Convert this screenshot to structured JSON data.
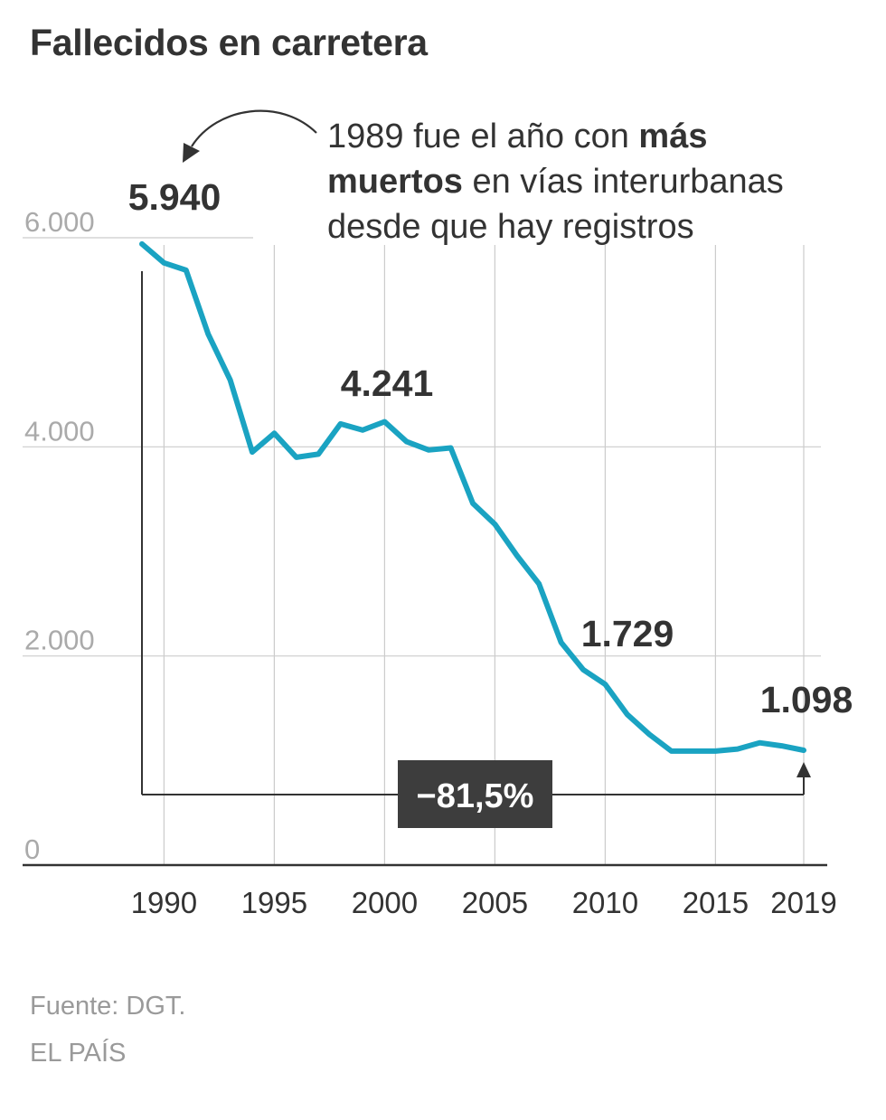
{
  "chart_data": {
    "type": "line",
    "title": "Fallecidos en carretera",
    "xlabel": "",
    "ylabel": "",
    "ylim": [
      0,
      6000
    ],
    "xlim": [
      1989,
      2019
    ],
    "grid": "horizontal",
    "y_ticks": [
      {
        "value": 0,
        "label": "0"
      },
      {
        "value": 2000,
        "label": "2.000"
      },
      {
        "value": 4000,
        "label": "4.000"
      },
      {
        "value": 6000,
        "label": "6.000"
      }
    ],
    "x_ticks": [
      {
        "value": 1990,
        "label": "1990"
      },
      {
        "value": 1995,
        "label": "1995"
      },
      {
        "value": 2000,
        "label": "2000"
      },
      {
        "value": 2005,
        "label": "2005"
      },
      {
        "value": 2010,
        "label": "2010"
      },
      {
        "value": 2015,
        "label": "2015"
      },
      {
        "value": 2019,
        "label": "2019"
      }
    ],
    "series": [
      {
        "color": "#1aa3c2",
        "x": [
          1989,
          1990,
          1991,
          1992,
          1993,
          1994,
          1995,
          1996,
          1997,
          1998,
          1999,
          2000,
          2001,
          2002,
          2003,
          2004,
          2005,
          2006,
          2007,
          2008,
          2009,
          2010,
          2011,
          2012,
          2013,
          2014,
          2015,
          2016,
          2017,
          2018,
          2019
        ],
        "y": [
          5940,
          5760,
          5690,
          5080,
          4640,
          3950,
          4130,
          3900,
          3930,
          4220,
          4160,
          4241,
          4050,
          3970,
          3990,
          3460,
          3260,
          2960,
          2690,
          2130,
          1870,
          1729,
          1440,
          1250,
          1090,
          1090,
          1090,
          1110,
          1170,
          1140,
          1098
        ]
      }
    ],
    "annotations": [
      {
        "x": 1989,
        "y": 5940,
        "label": "5.940"
      },
      {
        "x": 2000,
        "y": 4241,
        "label": "4.241"
      },
      {
        "x": 2010,
        "y": 1729,
        "label": "1.729"
      },
      {
        "x": 2019,
        "y": 1098,
        "label": "1.098"
      }
    ],
    "callout": {
      "line1": "1989 fue el año con ",
      "line1_bold": "más",
      "line2_bold": "muertos",
      "line2": " en vías interurbanas",
      "line3": "desde que hay registros"
    },
    "change_label": "−81,5%",
    "colors": {
      "line": "#1aa3c2",
      "grid": "#cccccc",
      "axis": "#333333",
      "tick_label": "#aaaaaa",
      "x_tick_label": "#333333",
      "change_box": "#3d3d3d"
    }
  },
  "source": "Fuente: DGT.",
  "credit": "EL PAÍS"
}
